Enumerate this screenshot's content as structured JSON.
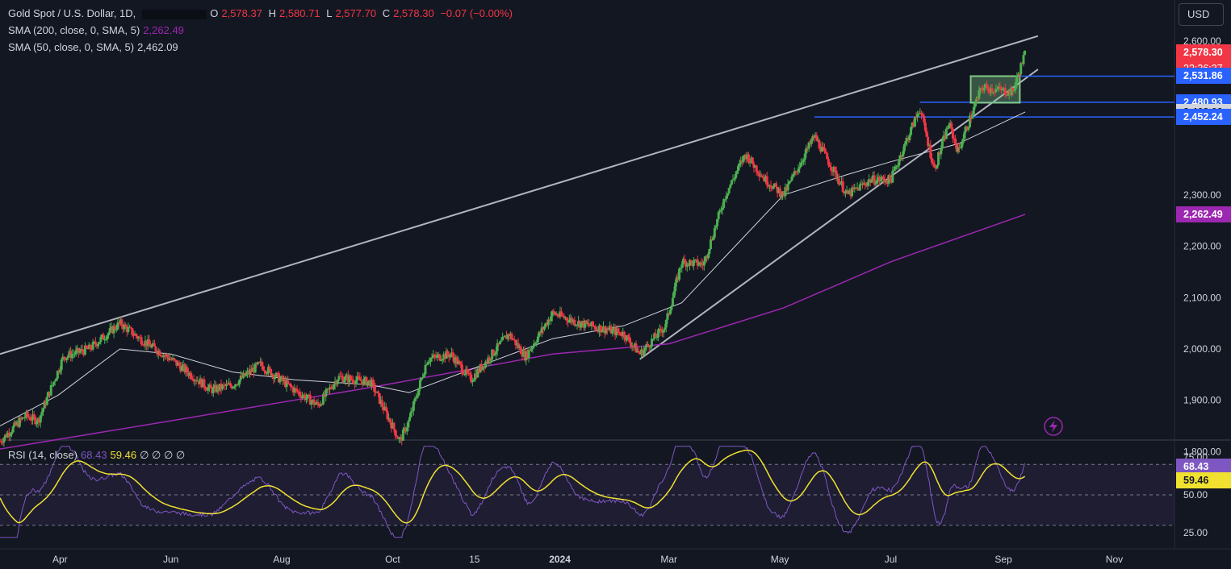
{
  "header": {
    "symbol": "Gold Spot / U.S. Dollar, 1D,",
    "open_label": "O",
    "open": "2,578.37",
    "high_label": "H",
    "high": "2,580.71",
    "low_label": "L",
    "low": "2,577.70",
    "close_label": "C",
    "close": "2,578.30",
    "change": "−0.07 (−0.00%)",
    "currency": "USD"
  },
  "indicators": {
    "sma200": {
      "label": "SMA (200, close, 0, SMA, 5)",
      "value": "2,262.49",
      "color": "#9c27b0"
    },
    "sma50": {
      "label": "SMA (50, close, 0, SMA, 5)",
      "value": "2,462.09",
      "color": "#d1d4dc"
    },
    "rsi": {
      "label": "RSI (14, close)",
      "value": "68.43",
      "ma_value": "59.46",
      "placeholders": "∅  ∅  ∅  ∅",
      "line_color": "#7e57c2",
      "ma_color": "#f0e130"
    }
  },
  "price_tags": [
    {
      "price": 2578.3,
      "text": "2,578.30",
      "sub": "22:36:37",
      "bg": "#f23645",
      "fg": "#ffffff"
    },
    {
      "price": 2531.86,
      "text": "2,531.86",
      "bg": "#2962ff",
      "fg": "#ffffff"
    },
    {
      "price": 2480.93,
      "text": "2,480.93",
      "bg": "#2962ff",
      "fg": "#ffffff"
    },
    {
      "price": 2462.09,
      "text": "2,462.09",
      "bg": "#d1d4dc",
      "fg": "#131722"
    },
    {
      "price": 2452.24,
      "text": "2,452.24",
      "bg": "#2962ff",
      "fg": "#ffffff"
    },
    {
      "price": 2262.49,
      "text": "2,262.49",
      "bg": "#9c27b0",
      "fg": "#ffffff"
    }
  ],
  "rsi_tags": [
    {
      "value": 68.43,
      "text": "68.43",
      "bg": "#7e57c2",
      "fg": "#ffffff"
    },
    {
      "value": 59.46,
      "text": "59.46",
      "bg": "#f0e130",
      "fg": "#131722"
    }
  ],
  "chart_data": {
    "type": "line",
    "series": [
      {
        "name": "Gold Spot / U.S. Dollar",
        "x": [
          "2023-02-27",
          "2023-03-13",
          "2023-03-20",
          "2023-04-03",
          "2023-04-17",
          "2023-05-04",
          "2023-05-15",
          "2023-06-01",
          "2023-06-23",
          "2023-07-05",
          "2023-07-20",
          "2023-08-08",
          "2023-08-21",
          "2023-09-01",
          "2023-09-19",
          "2023-10-05",
          "2023-10-10",
          "2023-10-20",
          "2023-11-02",
          "2023-11-13",
          "2023-12-04",
          "2023-12-13",
          "2023-12-28",
          "2024-01-12",
          "2024-02-05",
          "2024-02-14",
          "2024-02-28",
          "2024-03-08",
          "2024-03-20",
          "2024-04-01",
          "2024-04-12",
          "2024-04-23",
          "2024-05-03",
          "2024-05-20",
          "2024-06-07",
          "2024-06-20",
          "2024-07-01",
          "2024-07-17",
          "2024-07-25",
          "2024-08-02",
          "2024-08-07",
          "2024-08-20",
          "2024-08-29",
          "2024-09-06",
          "2024-09-13"
        ],
        "values": [
          1820,
          1870,
          1860,
          1985,
          2000,
          2050,
          2020,
          1980,
          1920,
          1930,
          1970,
          1920,
          1890,
          1945,
          1935,
          1820,
          1860,
          1980,
          1990,
          1940,
          2030,
          1985,
          2070,
          2050,
          2030,
          1990,
          2045,
          2170,
          2165,
          2300,
          2380,
          2330,
          2300,
          2415,
          2300,
          2330,
          2330,
          2470,
          2350,
          2440,
          2385,
          2510,
          2505,
          2500,
          2578
        ]
      },
      {
        "name": "SMA (50, close, 0, SMA, 5)",
        "x": [
          "2023-02-27",
          "2023-03-31",
          "2023-05-04",
          "2023-06-01",
          "2023-07-05",
          "2023-08-08",
          "2023-09-19",
          "2023-10-10",
          "2023-11-13",
          "2023-12-28",
          "2024-02-05",
          "2024-03-08",
          "2024-04-01",
          "2024-05-03",
          "2024-06-07",
          "2024-07-01",
          "2024-08-07",
          "2024-09-13"
        ],
        "values": [
          1850,
          1910,
          2000,
          1990,
          1955,
          1940,
          1930,
          1915,
          1960,
          2020,
          2045,
          2090,
          2180,
          2300,
          2340,
          2365,
          2400,
          2462.09
        ]
      },
      {
        "name": "SMA (200, close, 0, SMA, 5)",
        "x": [
          "2023-02-27",
          "2023-06-01",
          "2023-09-19",
          "2023-12-28",
          "2024-03-01",
          "2024-05-03",
          "2024-07-01",
          "2024-09-13"
        ],
        "values": [
          1805,
          1860,
          1925,
          1990,
          2010,
          2080,
          2170,
          2262.49
        ]
      }
    ],
    "x_ticks": [
      "Apr",
      "Jun",
      "Aug",
      "Oct",
      "15",
      "2024",
      "Mar",
      "May",
      "Jul",
      "Sep",
      "Nov"
    ],
    "y_ticks": [
      "2,600.00",
      "2,300.00",
      "2,200.00",
      "2,100.00",
      "2,000.00",
      "1,900.00",
      "1,800.00"
    ],
    "ylim": [
      1780,
      2630
    ],
    "rsi": {
      "y_ticks": [
        "75.00",
        "50.00",
        "25.00"
      ],
      "ylim": [
        15,
        85
      ],
      "upper_band": 70,
      "lower_band": 30
    },
    "trendlines": [
      {
        "from": [
          "2023-02-27",
          1990
        ],
        "to": [
          "2024-09-20",
          2610
        ],
        "color": "#b2b5be"
      },
      {
        "from": [
          "2024-02-14",
          1980
        ],
        "to": [
          "2024-09-20",
          2545
        ],
        "color": "#b2b5be"
      }
    ],
    "horizontal_levels": [
      {
        "from": "2024-07-17",
        "price": 2480.93,
        "color": "#2962ff"
      },
      {
        "from": "2024-05-20",
        "price": 2452.24,
        "color": "#2962ff"
      },
      {
        "from": "2024-09-08",
        "price": 2531.86,
        "color": "#2962ff"
      }
    ],
    "range_box": {
      "from": "2024-08-14",
      "to": "2024-09-10",
      "low": 2480,
      "high": 2531.86,
      "color": "#81c784"
    }
  }
}
